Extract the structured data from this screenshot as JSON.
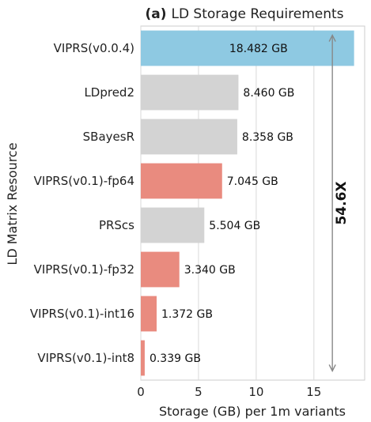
{
  "chart_data": {
    "type": "bar",
    "orientation": "horizontal",
    "title_prefix": "(a)",
    "title": "LD Storage Requirements",
    "xlabel": "Storage (GB) per 1m variants",
    "ylabel": "LD Matrix Resource",
    "xlim": [
      0,
      19.4
    ],
    "xticks": [
      0,
      5,
      10,
      15
    ],
    "grid": "vertical",
    "categories": [
      "VIPRS(v0.0.4)",
      "LDpred2",
      "SBayesR",
      "VIPRS(v0.1)-fp64",
      "PRScs",
      "VIPRS(v0.1)-fp32",
      "VIPRS(v0.1)-int16",
      "VIPRS(v0.1)-int8"
    ],
    "values": [
      18.482,
      8.46,
      8.358,
      7.045,
      5.504,
      3.34,
      1.372,
      0.339
    ],
    "value_labels": [
      "18.482 GB",
      "8.460 GB",
      "8.358 GB",
      "7.045 GB",
      "5.504 GB",
      "3.340 GB",
      "1.372 GB",
      "0.339 GB"
    ],
    "colors": [
      "#8ec9e2",
      "#d3d3d3",
      "#d3d3d3",
      "#e98b7f",
      "#d3d3d3",
      "#e98b7f",
      "#e98b7f",
      "#e98b7f"
    ],
    "annotation": {
      "text": "54.6X",
      "x": 16.6,
      "from_category": "VIPRS(v0.0.4)",
      "to_category": "VIPRS(v0.1)-int8",
      "arrow_color": "#888888"
    }
  }
}
